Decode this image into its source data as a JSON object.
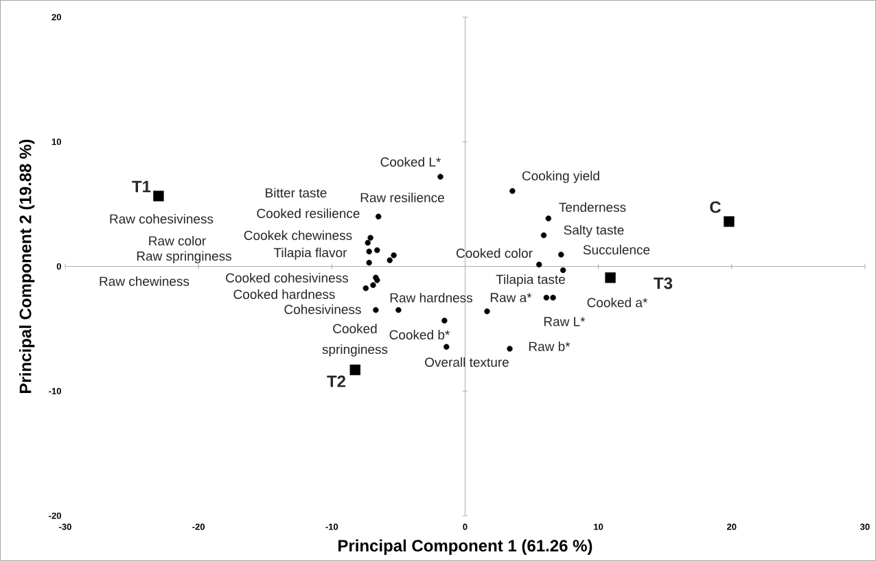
{
  "chart_data": {
    "type": "scatter",
    "xlabel": "Principal Component 1 (61.26 %)",
    "ylabel": "Principal Component 2 (19.88 %)",
    "xlim": [
      -30,
      30
    ],
    "ylim": [
      -20,
      20
    ],
    "xticks": [
      -30,
      -20,
      -10,
      0,
      10,
      20,
      30
    ],
    "yticks": [
      -20,
      -10,
      0,
      10,
      20
    ],
    "series": [
      {
        "color": "#000000",
        "marker": "circle",
        "x": [
          -1.85,
          3.55,
          -6.5,
          -7.1,
          -7.3,
          -7.2,
          -6.6,
          -5.35,
          -5.65,
          -7.2,
          -6.7,
          -6.6,
          -6.9,
          -7.45,
          -6.7,
          -5.0,
          1.65,
          -1.55,
          -1.4,
          3.35,
          6.25,
          5.9,
          7.2,
          5.55,
          7.35,
          6.1,
          6.6
        ],
        "values": [
          7.2,
          6.05,
          4.0,
          2.3,
          1.9,
          1.2,
          1.3,
          0.9,
          0.5,
          0.3,
          -0.9,
          -1.1,
          -1.5,
          -1.75,
          -3.5,
          -3.5,
          -3.6,
          -4.35,
          -6.45,
          -6.6,
          3.85,
          2.5,
          0.95,
          0.15,
          -0.3,
          -2.5,
          -2.5
        ]
      },
      {
        "color": "#000000",
        "marker": "square",
        "x": [
          -23.0,
          -8.25,
          10.9,
          19.8
        ],
        "values": [
          5.65,
          -8.3,
          -0.9,
          3.6
        ]
      }
    ],
    "annotations": [
      "Cooked L*",
      "Cooking yield",
      "Bitter taste",
      "Raw resilience",
      "Cooked resilience",
      "Tenderness",
      "Raw cohesiviness",
      "Cookek chewiness",
      "Salty taste",
      "Raw color",
      "Tilapia flavor",
      "Cooked color",
      "Succulence",
      "Raw springiness",
      "Raw chewiness",
      "Cooked cohesiviness",
      "Tilapia taste",
      "Cooked hardness",
      "Raw hardness",
      "Raw a*",
      "Cooked a*",
      "Cohesiviness",
      "Raw L*",
      "Cooked",
      "Cooked b*",
      "springiness",
      "Raw b*",
      "Overall texture",
      "T1",
      "T2",
      "T3",
      "C"
    ]
  }
}
